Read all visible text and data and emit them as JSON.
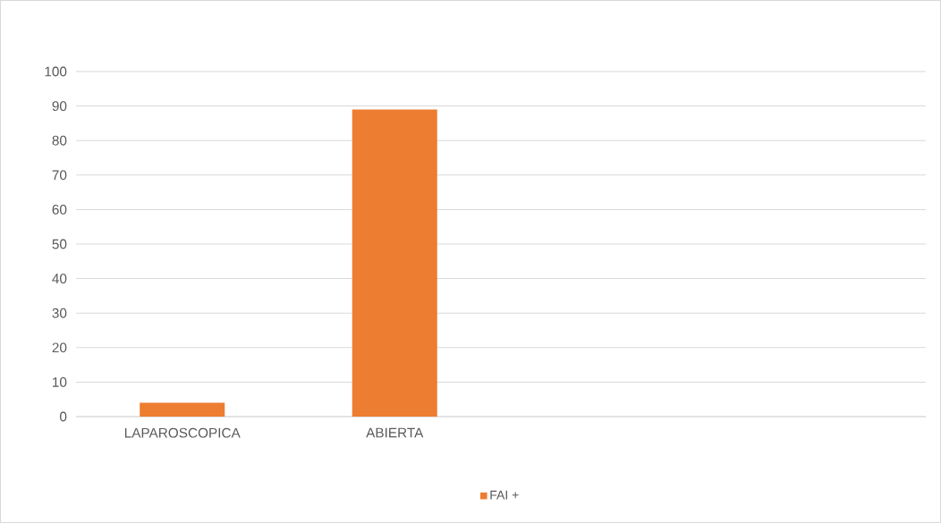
{
  "chart_data": {
    "type": "bar",
    "categories": [
      "LAPAROSCOPICA",
      "ABIERTA",
      null,
      null
    ],
    "series": [
      {
        "name": "FAI +",
        "color": "#ed7d31",
        "values": [
          4,
          89,
          null,
          null
        ]
      }
    ],
    "ylim": [
      0,
      100
    ],
    "yticks": [
      0,
      10,
      20,
      30,
      40,
      50,
      60,
      70,
      80,
      90,
      100
    ],
    "grid": "y",
    "legend": "bottom"
  }
}
